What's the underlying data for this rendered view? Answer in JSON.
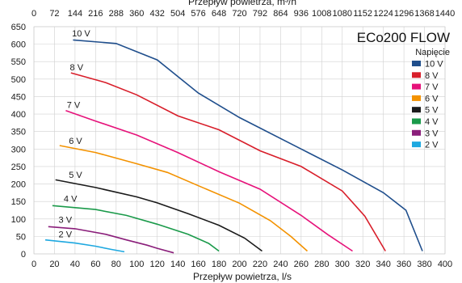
{
  "chart_data": {
    "type": "line",
    "title": "ECo200 FLOW",
    "xlabel": "Przepływ powietrza, l/s",
    "x2label": "Przepływ powietrza, m³/h",
    "ylabel": "",
    "xlim": [
      0,
      400
    ],
    "ylim": [
      0,
      650
    ],
    "x_ticks": [
      0,
      20,
      40,
      60,
      80,
      100,
      120,
      140,
      160,
      180,
      200,
      220,
      240,
      260,
      280,
      300,
      320,
      340,
      360,
      380,
      400
    ],
    "x2_ticks": [
      "0",
      "72",
      "144",
      "216",
      "288",
      "360",
      "432",
      "504",
      "576",
      "648",
      "720",
      "792",
      "864",
      "936",
      "1008",
      "1080",
      "1152",
      "1224",
      "1296",
      "1368",
      "1440"
    ],
    "y_ticks": [
      0,
      50,
      100,
      150,
      200,
      250,
      300,
      350,
      400,
      450,
      500,
      550,
      600,
      650
    ],
    "grid": true,
    "legend": {
      "title": "Napięcie",
      "position": "right"
    },
    "series": [
      {
        "name": "10 V",
        "color": "#1f4e8c",
        "label_at": [
          37,
          622
        ],
        "points": [
          [
            38,
            612
          ],
          [
            80,
            602
          ],
          [
            120,
            555
          ],
          [
            160,
            460
          ],
          [
            200,
            390
          ],
          [
            260,
            300
          ],
          [
            300,
            240
          ],
          [
            340,
            175
          ],
          [
            362,
            125
          ],
          [
            378,
            8
          ]
        ]
      },
      {
        "name": "8 V",
        "color": "#d81e2a",
        "label_at": [
          35,
          525
        ],
        "points": [
          [
            36,
            518
          ],
          [
            70,
            490
          ],
          [
            100,
            455
          ],
          [
            140,
            395
          ],
          [
            180,
            355
          ],
          [
            220,
            295
          ],
          [
            260,
            250
          ],
          [
            300,
            180
          ],
          [
            322,
            108
          ],
          [
            342,
            8
          ]
        ]
      },
      {
        "name": "7 V",
        "color": "#e6127a",
        "label_at": [
          32,
          418
        ],
        "points": [
          [
            31,
            410
          ],
          [
            60,
            380
          ],
          [
            100,
            340
          ],
          [
            140,
            290
          ],
          [
            180,
            235
          ],
          [
            220,
            185
          ],
          [
            260,
            110
          ],
          [
            286,
            55
          ],
          [
            310,
            8
          ]
        ]
      },
      {
        "name": "6 V",
        "color": "#f39200",
        "label_at": [
          34,
          315
        ],
        "points": [
          [
            25,
            310
          ],
          [
            60,
            290
          ],
          [
            100,
            258
          ],
          [
            130,
            233
          ],
          [
            160,
            195
          ],
          [
            200,
            145
          ],
          [
            230,
            95
          ],
          [
            250,
            50
          ],
          [
            266,
            8
          ]
        ]
      },
      {
        "name": "5 V",
        "color": "#1a1a1a",
        "label_at": [
          34,
          218
        ],
        "points": [
          [
            21,
            212
          ],
          [
            60,
            190
          ],
          [
            100,
            163
          ],
          [
            120,
            146
          ],
          [
            150,
            115
          ],
          [
            180,
            82
          ],
          [
            205,
            45
          ],
          [
            222,
            8
          ]
        ]
      },
      {
        "name": "4 V",
        "color": "#1a9a4a",
        "label_at": [
          29,
          149
        ],
        "points": [
          [
            18,
            138
          ],
          [
            60,
            127
          ],
          [
            90,
            110
          ],
          [
            120,
            85
          ],
          [
            150,
            56
          ],
          [
            170,
            30
          ],
          [
            180,
            8
          ]
        ]
      },
      {
        "name": "3 V",
        "color": "#8a1e7a",
        "label_at": [
          24,
          89
        ],
        "points": [
          [
            14,
            78
          ],
          [
            40,
            72
          ],
          [
            70,
            56
          ],
          [
            90,
            40
          ],
          [
            110,
            25
          ],
          [
            120,
            16
          ],
          [
            136,
            3
          ]
        ]
      },
      {
        "name": "2 V",
        "color": "#1ea8e0",
        "label_at": [
          24,
          47
        ],
        "points": [
          [
            11,
            40
          ],
          [
            40,
            31
          ],
          [
            60,
            22
          ],
          [
            75,
            13
          ],
          [
            88,
            6
          ]
        ]
      }
    ]
  }
}
